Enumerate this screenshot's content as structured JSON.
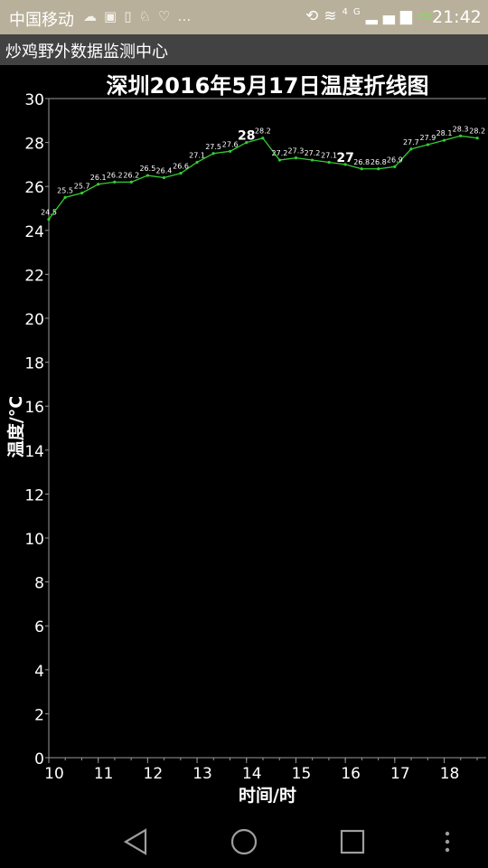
{
  "status_bar": {
    "carrier": "中国移动",
    "time": "21:42",
    "network_label": "4G",
    "icons": [
      "weather-cloud-icon",
      "image-icon",
      "battery-saver-icon",
      "android-icon",
      "heart-icon",
      "more-icon",
      "rotate-icon",
      "wifi-icon",
      "signal-icon",
      "battery-charging-icon"
    ]
  },
  "app_bar": {
    "title": "炒鸡野外数据监测中心"
  },
  "nav_bar": {
    "buttons": [
      "back-icon",
      "home-icon",
      "recents-icon",
      "menu-icon"
    ]
  },
  "colors": {
    "status_bar": "#b8b09a",
    "app_bar": "#424242",
    "background": "#000000",
    "line": "#32cd32",
    "text": "#ffffff"
  },
  "chart_data": {
    "type": "line",
    "title": "深圳2016年5月17日温度折线图",
    "xlabel": "时间/时",
    "ylabel": "温度/°C",
    "xlim": [
      10,
      18.85
    ],
    "ylim": [
      0,
      30
    ],
    "x_ticks": [
      10,
      11,
      12,
      13,
      14,
      15,
      16,
      17,
      18
    ],
    "y_ticks": [
      0,
      2,
      4,
      6,
      8,
      10,
      12,
      14,
      16,
      18,
      20,
      22,
      24,
      26,
      28,
      30
    ],
    "grid": false,
    "legend": "none",
    "series": [
      {
        "x": [
          10,
          10.33,
          10.67,
          11,
          11.33,
          11.67,
          12,
          12.33,
          12.67,
          13,
          13.33,
          13.67,
          14,
          14.33,
          14.67,
          15,
          15.33,
          15.67,
          16,
          16.33,
          16.67,
          17,
          17.33,
          17.67,
          18,
          18.33,
          18.67
        ],
        "y": [
          24.5,
          25.5,
          25.7,
          26.1,
          26.2,
          26.2,
          26.5,
          26.4,
          26.6,
          27.1,
          27.5,
          27.6,
          28,
          28.2,
          27.2,
          27.3,
          27.2,
          27.1,
          27,
          26.8,
          26.8,
          26.9,
          27.7,
          27.9,
          28.1,
          28.3,
          28.2
        ],
        "labels": [
          "24.5",
          "25.5",
          "25.7",
          "26.1",
          "26.2",
          "26.2",
          "26.5",
          "26.4",
          "26.6",
          "27.1",
          "27.5",
          "27.6",
          "28",
          "28.2",
          "27.2",
          "27.3",
          "27.2",
          "27.1",
          "27",
          "26.8",
          "26.8",
          "26.9",
          "27.7",
          "27.9",
          "28.1",
          "28.3",
          "28.2"
        ]
      }
    ]
  }
}
